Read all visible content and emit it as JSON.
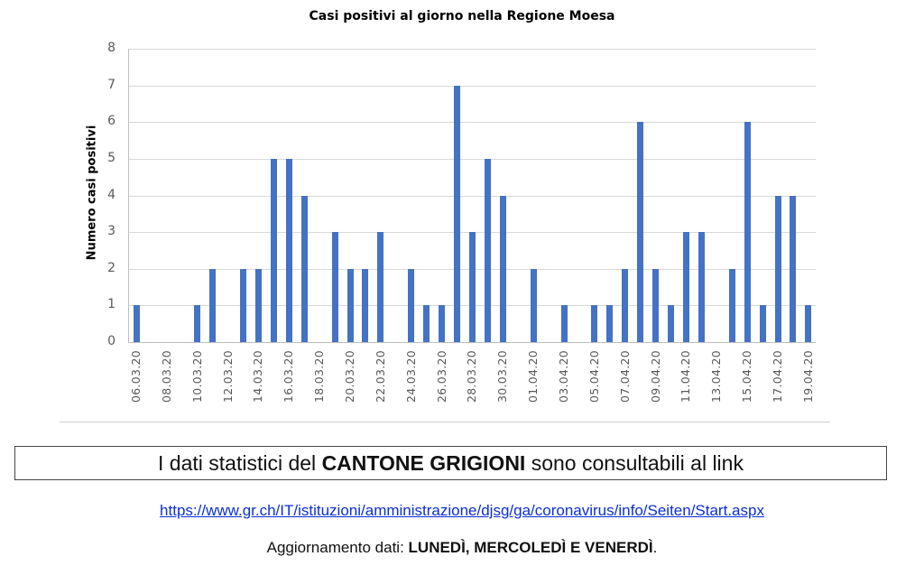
{
  "chart_data": {
    "type": "bar",
    "title": "Casi positivi al giorno nella Regione Moesa",
    "xlabel": "",
    "ylabel": "Numero casi positivi",
    "ylim": [
      0,
      8
    ],
    "yticks": [
      0,
      1,
      2,
      3,
      4,
      5,
      6,
      7,
      8
    ],
    "grid": true,
    "legend": null,
    "color": "#4472c4",
    "categories": [
      "06.03.20",
      "07.03.20",
      "08.03.20",
      "09.03.20",
      "10.03.20",
      "11.03.20",
      "12.03.20",
      "13.03.20",
      "14.03.20",
      "15.03.20",
      "16.03.20",
      "17.03.20",
      "18.03.20",
      "19.03.20",
      "20.03.20",
      "21.03.20",
      "22.03.20",
      "23.03.20",
      "24.03.20",
      "25.03.20",
      "26.03.20",
      "27.03.20",
      "28.03.20",
      "29.03.20",
      "30.03.20",
      "31.03.20",
      "01.04.20",
      "02.04.20",
      "03.04.20",
      "04.04.20",
      "05.04.20",
      "06.04.20",
      "07.04.20",
      "08.04.20",
      "09.04.20",
      "10.04.20",
      "11.04.20",
      "12.04.20",
      "13.04.20",
      "14.04.20",
      "15.04.20",
      "16.04.20",
      "17.04.20",
      "18.04.20",
      "19.04.20"
    ],
    "values": [
      1,
      0,
      0,
      0,
      1,
      2,
      0,
      2,
      2,
      5,
      5,
      4,
      0,
      3,
      2,
      2,
      3,
      0,
      2,
      1,
      1,
      7,
      3,
      5,
      4,
      0,
      2,
      0,
      1,
      0,
      1,
      1,
      2,
      6,
      2,
      1,
      3,
      3,
      0,
      2,
      6,
      1,
      4,
      4,
      1
    ],
    "x_tick_labels": [
      "06.03.20",
      "08.03.20",
      "10.03.20",
      "12.03.20",
      "14.03.20",
      "16.03.20",
      "18.03.20",
      "20.03.20",
      "22.03.20",
      "24.03.20",
      "26.03.20",
      "28.03.20",
      "30.03.20",
      "01.04.20",
      "03.04.20",
      "05.04.20",
      "07.04.20",
      "09.04.20",
      "11.04.20",
      "13.04.20",
      "15.04.20",
      "17.04.20",
      "19.04.20"
    ]
  },
  "info": {
    "prefix": "I dati statistici del ",
    "bold": "CANTONE GRIGIONI",
    "suffix": " sono consultabili al link"
  },
  "link": {
    "text": "https://www.gr.ch/IT/istituzioni/amministrazione/djsg/ga/coronavirus/info/Seiten/Start.aspx"
  },
  "update": {
    "prefix": "Aggiornamento dati: ",
    "bold": "LUNEDÌ, MERCOLEDÌ E VENERDÌ",
    "suffix": "."
  }
}
